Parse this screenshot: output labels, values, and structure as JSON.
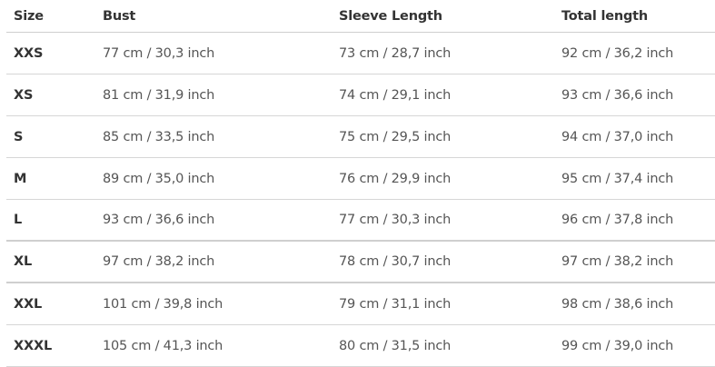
{
  "table": {
    "headers": [
      "Size",
      "Bust",
      "Sleeve Length",
      "Total length"
    ],
    "rows": [
      [
        "XXS",
        "77 cm / 30,3 inch",
        "73 cm / 28,7 inch",
        "92 cm / 36,2 inch"
      ],
      [
        "XS",
        "81 cm / 31,9 inch",
        "74 cm / 29,1 inch",
        "93 cm / 36,6 inch"
      ],
      [
        "S",
        "85 cm / 33,5 inch",
        "75 cm / 29,5 inch",
        "94 cm / 37,0 inch"
      ],
      [
        "M",
        "89 cm / 35,0 inch",
        "76 cm / 29,9 inch",
        "95 cm / 37,4 inch"
      ],
      [
        "L",
        "93 cm / 36,6 inch",
        "77 cm / 30,3 inch",
        "96 cm / 37,8 inch"
      ],
      [
        "XL",
        "97 cm / 38,2 inch",
        "78 cm / 30,7 inch",
        "97 cm / 38,2 inch"
      ],
      [
        "XXL",
        "101 cm / 39,8 inch",
        "79 cm / 31,1 inch",
        "98 cm / 38,6 inch"
      ],
      [
        "XXXL",
        "105 cm / 41,3 inch",
        "80 cm / 31,5 inch",
        "99 cm / 39,0 inch"
      ]
    ]
  }
}
